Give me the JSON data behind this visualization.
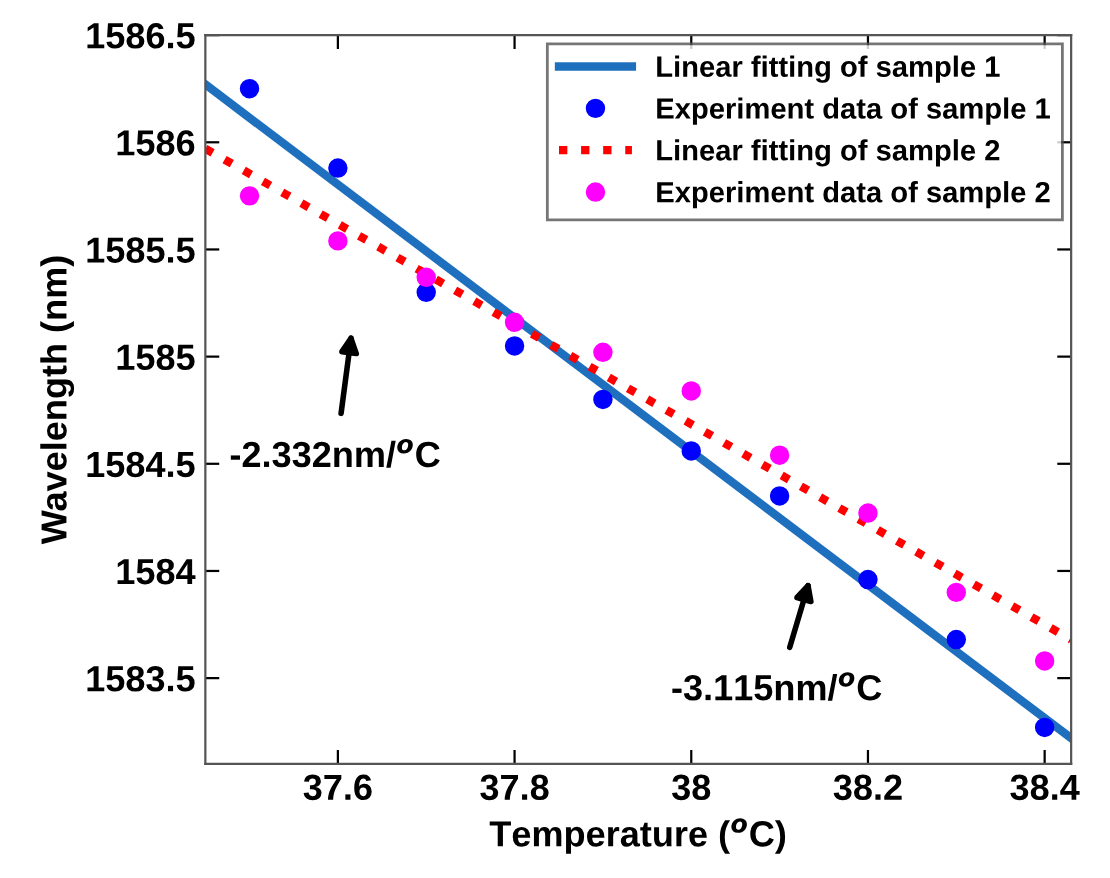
{
  "chart_data": {
    "type": "scatter",
    "xlabel": "Temperature ($^{o}$C)",
    "ylabel": "Wavelength (nm)",
    "xlim": [
      37.45,
      38.43
    ],
    "ylim": [
      1583.1,
      1586.5
    ],
    "xticks": [
      37.6,
      37.8,
      38,
      38.2,
      38.4
    ],
    "yticks": [
      1583.5,
      1584,
      1584.5,
      1585,
      1585.5,
      1586,
      1586.5
    ],
    "grid": false,
    "legend": "top right",
    "series": [
      {
        "name": "Linear fitting of sample 1",
        "type": "line",
        "color": "#1f6fbf",
        "line_style": "solid",
        "marker": "none",
        "x": [
          37.45,
          38.43
        ],
        "values": [
          1586.27,
          1583.22
        ]
      },
      {
        "name": "Experiment data of sample 1",
        "color": "#0000ff",
        "marker": "circle",
        "x": [
          37.5,
          37.6,
          37.7,
          37.8,
          37.9,
          38.0,
          38.1,
          38.2,
          38.3,
          38.4
        ],
        "values": [
          1586.25,
          1585.88,
          1585.3,
          1585.05,
          1584.8,
          1584.56,
          1584.35,
          1583.96,
          1583.68,
          1583.27
        ]
      },
      {
        "name": "Linear fitting of sample 2",
        "type": "line",
        "color": "#ff0000",
        "line_style": "dotted",
        "marker": "none",
        "x": [
          37.45,
          38.43
        ],
        "values": [
          1585.97,
          1583.68
        ]
      },
      {
        "name": "Experiment data of sample 2",
        "color": "#ff00ff",
        "marker": "circle",
        "x": [
          37.5,
          37.6,
          37.7,
          37.8,
          37.9,
          38.0,
          38.1,
          38.2,
          38.3,
          38.4
        ],
        "values": [
          1585.75,
          1585.54,
          1585.37,
          1585.16,
          1585.02,
          1584.84,
          1584.54,
          1584.27,
          1583.9,
          1583.58
        ]
      }
    ],
    "annotations": [
      "-2.332nm/$^{o}$C",
      "-3.115nm/$^{o}$C"
    ]
  }
}
